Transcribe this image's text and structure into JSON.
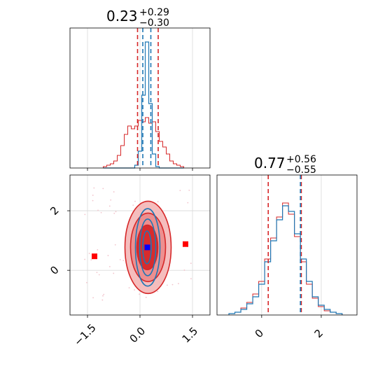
{
  "colors": {
    "red": "#d62728",
    "blue": "#1f77b4",
    "marker_red": "#ff0000",
    "marker_blue": "#0000ff",
    "grid": "#d9d9d9"
  },
  "chart_data": [
    {
      "type": "histogram",
      "panel": "top-left",
      "title": {
        "median": "0.23",
        "upper": "+0.29",
        "lower": "−0.30"
      },
      "xlim": [
        -2.0,
        2.0
      ],
      "x_ticks": [
        -1.5,
        0.0,
        1.5
      ],
      "bin_centers": [
        -1.0,
        -0.9,
        -0.8,
        -0.7,
        -0.6,
        -0.5,
        -0.4,
        -0.3,
        -0.2,
        -0.1,
        0.0,
        0.1,
        0.2,
        0.3,
        0.4,
        0.5,
        0.6,
        0.7,
        0.8,
        0.9,
        1.0,
        1.1,
        1.2
      ],
      "series": [
        {
          "values": [
            0.01,
            0.02,
            0.03,
            0.05,
            0.09,
            0.16,
            0.24,
            0.3,
            0.28,
            0.3,
            0.34,
            0.33,
            0.36,
            0.32,
            0.33,
            0.26,
            0.19,
            0.15,
            0.1,
            0.05,
            0.03,
            0.02,
            0.01
          ]
        },
        {
          "values": [
            0.0,
            0.0,
            0.0,
            0.0,
            0.0,
            0.0,
            0.0,
            0.0,
            0.0,
            0.02,
            0.12,
            0.52,
            0.9,
            0.46,
            0.1,
            0.01,
            0.0,
            0.0,
            0.0,
            0.0,
            0.0,
            0.0,
            0.0
          ]
        }
      ],
      "vlines_red": [
        -0.07,
        0.52
      ],
      "vlines_blue": [
        0.08,
        0.31
      ]
    },
    {
      "type": "histogram",
      "panel": "bottom-right",
      "title": {
        "median": "0.77",
        "upper": "+0.56",
        "lower": "−0.55"
      },
      "xlim": [
        -1.5,
        3.2
      ],
      "x_ticks": [
        0,
        2
      ],
      "bin_centers": [
        -1.0,
        -0.8,
        -0.6,
        -0.4,
        -0.2,
        0.0,
        0.2,
        0.4,
        0.6,
        0.8,
        1.0,
        1.2,
        1.4,
        1.6,
        1.8,
        2.0,
        2.2,
        2.4,
        2.6
      ],
      "series": [
        {
          "values": [
            0.01,
            0.02,
            0.04,
            0.08,
            0.13,
            0.22,
            0.38,
            0.53,
            0.68,
            0.78,
            0.74,
            0.58,
            0.4,
            0.24,
            0.13,
            0.07,
            0.04,
            0.02,
            0.01
          ]
        },
        {
          "values": [
            0.01,
            0.02,
            0.05,
            0.09,
            0.15,
            0.24,
            0.4,
            0.55,
            0.7,
            0.8,
            0.72,
            0.56,
            0.38,
            0.22,
            0.12,
            0.06,
            0.03,
            0.02,
            0.01
          ]
        }
      ],
      "vlines_red": [
        0.22,
        1.33
      ],
      "vlines_blue": [
        1.3
      ]
    },
    {
      "type": "scatter",
      "panel": "bottom-left",
      "xlim": [
        -2.0,
        2.0
      ],
      "ylim": [
        -1.5,
        3.2
      ],
      "x_ticks": [
        -1.5,
        0.0,
        1.5
      ],
      "y_ticks": [
        0,
        2
      ],
      "points": [
        {
          "x": -1.3,
          "y": 0.47,
          "color": "red"
        },
        {
          "x": 1.3,
          "y": 0.88,
          "color": "red"
        },
        {
          "x": 0.21,
          "y": 0.77,
          "color": "blue"
        }
      ],
      "red_contours": [
        {
          "cx": 0.23,
          "cy": 0.77,
          "rx": 0.66,
          "ry": 1.55
        },
        {
          "cx": 0.23,
          "cy": 0.77,
          "rx": 0.5,
          "ry": 1.15
        },
        {
          "cx": 0.21,
          "cy": 0.77,
          "rx": 0.3,
          "ry": 0.75
        }
      ],
      "blue_contours": [
        {
          "cx": 0.22,
          "cy": 0.77,
          "rx": 0.35,
          "ry": 1.3
        },
        {
          "cx": 0.22,
          "cy": 0.77,
          "rx": 0.23,
          "ry": 0.95
        },
        {
          "cx": 0.2,
          "cy": 0.77,
          "rx": 0.12,
          "ry": 0.55
        }
      ]
    }
  ]
}
